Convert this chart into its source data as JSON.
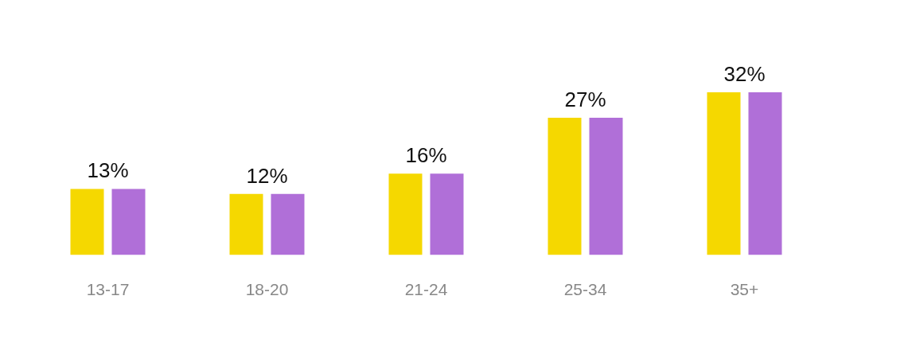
{
  "chart_data": {
    "type": "bar",
    "categories": [
      "13-17",
      "18-20",
      "21-24",
      "25-34",
      "35+"
    ],
    "series": [
      {
        "color": "#f5d800",
        "values": [
          13,
          12,
          16,
          27,
          32
        ],
        "value_labels": [
          "13%",
          "12%",
          "16%",
          "27%",
          "32%"
        ]
      },
      {
        "color": "#b06fd8",
        "values": [
          13,
          12,
          16,
          27,
          32
        ]
      }
    ]
  }
}
